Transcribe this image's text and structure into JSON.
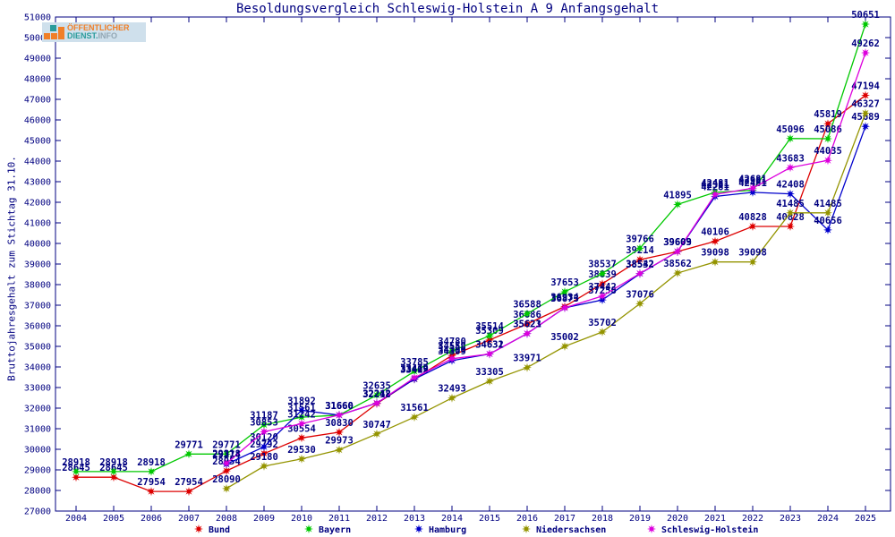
{
  "header": {
    "logo": {
      "line1": "ÖFFENTLICHER",
      "line2_part1": "DIENST.",
      "line2_part2": "INFO"
    }
  },
  "chart_data": {
    "type": "line",
    "title": "Besoldungsvergleich Schleswig-Holstein A 9 Anfangsgehalt",
    "xlabel": "",
    "ylabel": "Bruttojahresgehalt zum Stichtag 31.10.",
    "ylim": [
      27000,
      51000
    ],
    "ytick_step": 1000,
    "grid": false,
    "legend_position": "bottom",
    "axis_color": "#000080",
    "label_color": "#000080",
    "x": [
      "2004",
      "2005",
      "2006",
      "2007",
      "2008",
      "2009",
      "2010",
      "2011",
      "2012",
      "2013",
      "2014",
      "2015",
      "2016",
      "2017",
      "2018",
      "2019",
      "2020",
      "2021",
      "2022",
      "2023",
      "2024",
      "2025"
    ],
    "series": [
      {
        "name": "Bund",
        "color": "#dd0000",
        "values": [
          28645,
          28645,
          27954,
          27954,
          28954,
          29792,
          30554,
          30830,
          32218,
          33412,
          34559,
          35309,
          36086,
          36934,
          38039,
          39214,
          39603,
          40106,
          40828,
          40828,
          45819,
          47194
        ]
      },
      {
        "name": "Bayern",
        "color": "#00c800",
        "values": [
          28918,
          28918,
          28918,
          29771,
          29771,
          31187,
          31561,
          31660,
          32635,
          33785,
          34780,
          35514,
          36588,
          37653,
          38537,
          39766,
          41895,
          42481,
          42581,
          45096,
          45086,
          50651
        ]
      },
      {
        "name": "Hamburg",
        "color": "#0000cc",
        "values": [
          null,
          null,
          null,
          null,
          29274,
          30120,
          31892,
          31660,
          32242,
          33409,
          34309,
          34631,
          35621,
          36873,
          37258,
          38532,
          39609,
          42281,
          42481,
          42408,
          40656,
          45689
        ]
      },
      {
        "name": "Niedersachsen",
        "color": "#949400",
        "values": [
          null,
          null,
          null,
          null,
          28090,
          29180,
          29530,
          29973,
          30747,
          31561,
          32493,
          33305,
          33971,
          35002,
          35702,
          37076,
          38562,
          39098,
          39098,
          41485,
          41485,
          46327
        ]
      },
      {
        "name": "Schleswig-Holstein",
        "color": "#dd00dd",
        "values": [
          null,
          null,
          null,
          null,
          29318,
          30853,
          31242,
          31660,
          32242,
          33479,
          34399,
          34632,
          35623,
          36873,
          37442,
          38542,
          39609,
          42381,
          42681,
          43683,
          44035,
          49262
        ]
      }
    ]
  }
}
